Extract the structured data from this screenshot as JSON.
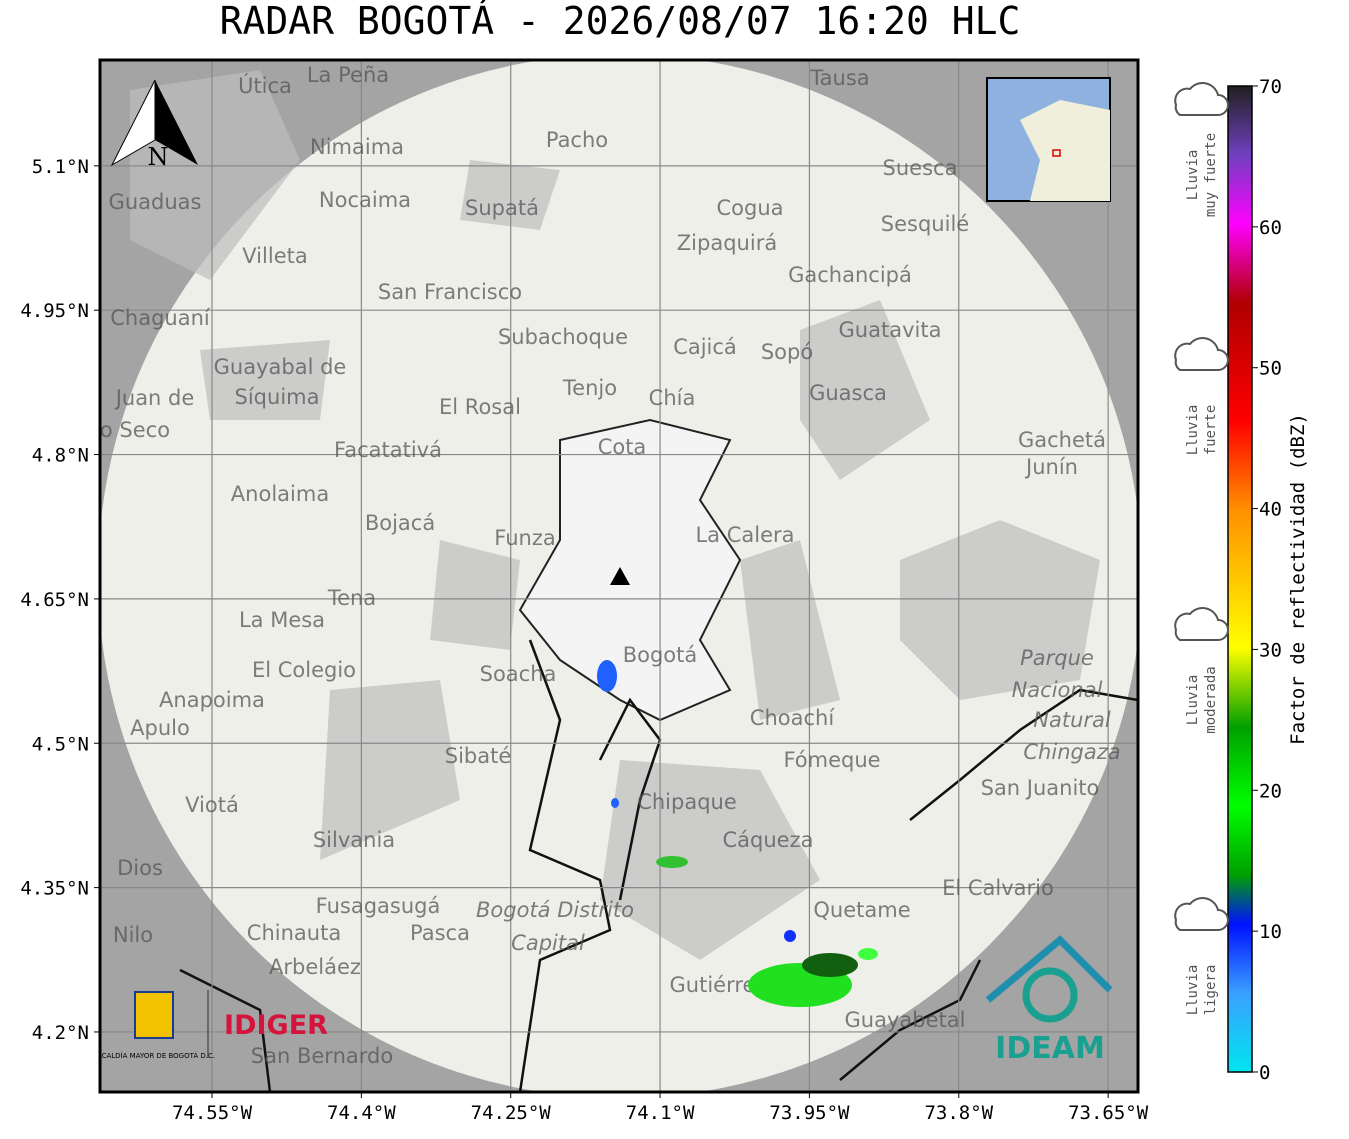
{
  "title": "RADAR BOGOTÁ - 2026/08/07 16:20 HLC",
  "map": {
    "xlim": [
      -74.6625,
      -73.62
    ],
    "ylim": [
      4.1376,
      5.21
    ],
    "xticks": [
      {
        "value": -74.55,
        "label": "74.55°W"
      },
      {
        "value": -74.4,
        "label": "74.4°W"
      },
      {
        "value": -74.25,
        "label": "74.25°W"
      },
      {
        "value": -74.1,
        "label": "74.1°W"
      },
      {
        "value": -73.95,
        "label": "73.95°W"
      },
      {
        "value": -73.8,
        "label": "73.8°W"
      },
      {
        "value": -73.65,
        "label": "73.65°W"
      }
    ],
    "yticks": [
      {
        "value": 5.1,
        "label": "5.1°N"
      },
      {
        "value": 4.95,
        "label": "4.95°N"
      },
      {
        "value": 4.8,
        "label": "4.8°N"
      },
      {
        "value": 4.65,
        "label": "4.65°N"
      },
      {
        "value": 4.5,
        "label": "4.5°N"
      },
      {
        "value": 4.35,
        "label": "4.35°N"
      },
      {
        "value": 4.2,
        "label": "4.2°N"
      }
    ],
    "places": [
      "La Peña",
      "Útica",
      "Tausa",
      "Pacho",
      "Nimaima",
      "Suesca",
      "Guaduas",
      "Nocaima",
      "Supatá",
      "Cogua",
      "Sesquilé",
      "Zipaquirá",
      "Villeta",
      "Gachancipá",
      "San Francisco",
      "Chaguaní",
      "Guatavita",
      "Subachoque",
      "Cajicá",
      "Sopó",
      "Guayabal de",
      "Síquima",
      "Tenjo",
      "Chía",
      "Guasca",
      "Juan de",
      "El Rosal",
      "o Seco",
      "Cota",
      "Gachetá",
      "Junín",
      "Facatativá",
      "Anolaima",
      "Bojacá",
      "La Calera",
      "Funza",
      "Tena",
      "La Mesa",
      "Bogotá",
      "Parque",
      "Nacional",
      "Natural",
      "Chingaza",
      "El Colegio",
      "Soacha",
      "Anapoima",
      "Apulo",
      "Choachí",
      "Sibaté",
      "Fómeque",
      "San Juanito",
      "Viotá",
      "Chipaque",
      "Silvania",
      "Cáqueza",
      "Dios",
      "El Calvario",
      "Fusagasugá",
      "Bogotá Distrito",
      "Capital",
      "Quetame",
      "Nilo",
      "Chinauta",
      "Pasca",
      "Arbeláez",
      "Gutiérrez",
      "Guayabetal",
      "San Bernardo"
    ],
    "north": "N"
  },
  "colorbar": {
    "label": "Factor de reflectividad (dBZ)",
    "lim": [
      0,
      70
    ],
    "ticks": [
      0,
      10,
      20,
      30,
      40,
      50,
      60,
      70
    ]
  },
  "rain_levels": [
    [
      "Lluvia",
      "muy fuerte"
    ],
    [
      "Lluvia",
      "fuerte"
    ],
    [
      "Lluvia",
      "moderada"
    ],
    [
      "Lluvia",
      "ligera"
    ]
  ],
  "logos": {
    "alcaldia": "ALCALDÍA MAYOR DE BOGOTÁ D.C.",
    "idiger": "IDIGER",
    "ideam": "IDEAM"
  }
}
